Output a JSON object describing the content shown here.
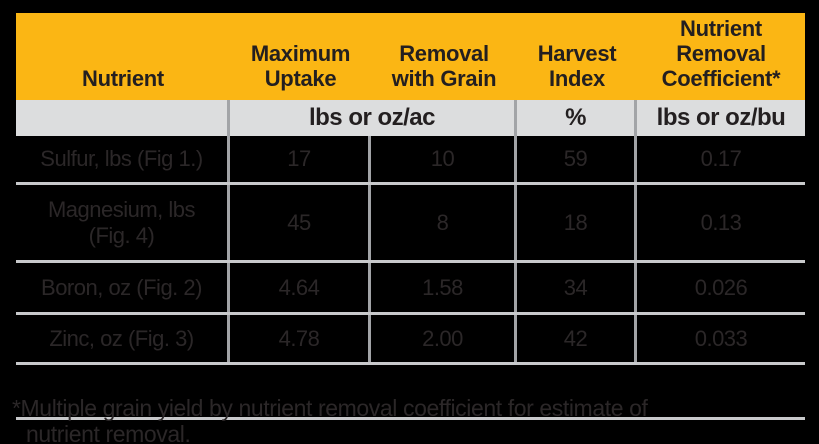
{
  "colors": {
    "background": "#000000",
    "header_bg": "#FBB614",
    "header_text": "#231F20",
    "units_bg": "#DCDDDE",
    "body_text": "#2B2728",
    "horizontal_line": "#C8C9CB",
    "vertical_line": "#A2A4A7"
  },
  "table": {
    "columns": [
      {
        "label": "Nutrient"
      },
      {
        "label": "Maximum\nUptake"
      },
      {
        "label": "Removal\nwith Grain"
      },
      {
        "label": "Harvest\nIndex"
      },
      {
        "label": "Nutrient\nRemoval\nCoefficient*"
      }
    ],
    "units": {
      "nutrient": "",
      "uptake_and_removal": "lbs or oz/ac",
      "harvest_index": "%",
      "coefficient": "lbs or oz/bu"
    },
    "rows": [
      {
        "nutrient": "Sulfur, lbs (Fig 1.)",
        "maximum_uptake": "17",
        "removal_with_grain": "10",
        "harvest_index": "59",
        "removal_coefficient": "0.17"
      },
      {
        "nutrient": "Magnesium, lbs\n(Fig. 4)",
        "maximum_uptake": "45",
        "removal_with_grain": "8",
        "harvest_index": "18",
        "removal_coefficient": "0.13"
      },
      {
        "nutrient": "Boron, oz (Fig. 2)",
        "maximum_uptake": "4.64",
        "removal_with_grain": "1.58",
        "harvest_index": "34",
        "removal_coefficient": "0.026"
      },
      {
        "nutrient": "Zinc, oz (Fig. 3)",
        "maximum_uptake": "4.78",
        "removal_with_grain": "2.00",
        "harvest_index": "42",
        "removal_coefficient": "0.033"
      }
    ],
    "footnote": "*Multiple grain yield by nutrient removal coefficient for estimate of\nnutrient removal."
  },
  "chart_data": {
    "type": "table",
    "title": "",
    "columns": [
      "Nutrient",
      "Maximum Uptake",
      "Removal with Grain",
      "Harvest Index",
      "Nutrient Removal Coefficient*"
    ],
    "units_row": [
      "",
      "lbs or oz/ac",
      "lbs or oz/ac",
      "%",
      "lbs or oz/bu"
    ],
    "rows": [
      [
        "Sulfur, lbs (Fig 1.)",
        17,
        10,
        59,
        0.17
      ],
      [
        "Magnesium, lbs (Fig. 4)",
        45,
        8,
        18,
        0.13
      ],
      [
        "Boron, oz (Fig. 2)",
        4.64,
        1.58,
        34,
        0.026
      ],
      [
        "Zinc, oz (Fig. 3)",
        4.78,
        2.0,
        42,
        0.033
      ]
    ],
    "footnote": "*Multiple grain yield by nutrient removal coefficient for estimate of nutrient removal."
  }
}
